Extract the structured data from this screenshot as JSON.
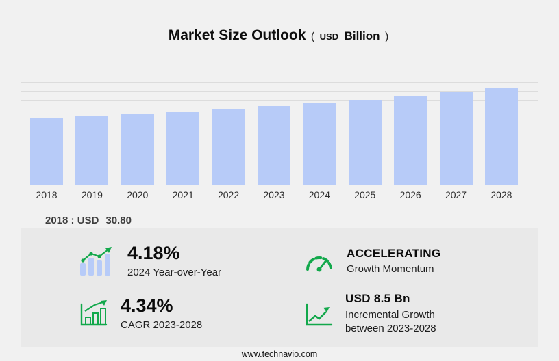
{
  "title": {
    "main": "Market Size Outlook",
    "open_paren": "(",
    "unit_small": "USD",
    "unit_bold": "Billion",
    "close_paren": ")"
  },
  "chart_data": {
    "type": "bar",
    "title": "Market Size Outlook (USD Billion)",
    "categories": [
      "2018",
      "2019",
      "2020",
      "2021",
      "2022",
      "2023",
      "2024",
      "2025",
      "2026",
      "2027",
      "2028"
    ],
    "values": [
      30.8,
      31.6,
      32.6,
      33.6,
      34.8,
      36.2,
      37.7,
      39.3,
      41.0,
      42.8,
      44.7
    ],
    "unit": "USD Billion",
    "bar_color": "#b7cbf8",
    "ylim": [
      0,
      48
    ],
    "grid": "horizontal, upper region only",
    "legend": "none",
    "annotation": "2018 : USD 30.80"
  },
  "baseline": {
    "label": "2018 : USD",
    "value": "30.80"
  },
  "stats": [
    {
      "value": "4.18%",
      "label": "2024 Year-over-Year",
      "icon": "yoy-bars-trend-icon"
    },
    {
      "value": "ACCELERATING",
      "label": "Growth Momentum",
      "icon": "speedometer-icon"
    },
    {
      "value": "4.34%",
      "label": "CAGR 2023-2028",
      "icon": "cagr-bar-chart-icon"
    },
    {
      "value": "USD 8.5 Bn",
      "label": "Incremental Growth between 2023-2028",
      "icon": "incremental-growth-icon"
    }
  ],
  "colors": {
    "accent_green": "#12a84b",
    "bar_blue": "#b7cbf8",
    "panel_gray": "#e9e9e9",
    "background": "#f1f1f1"
  },
  "footer": {
    "url": "www.technavio.com"
  }
}
